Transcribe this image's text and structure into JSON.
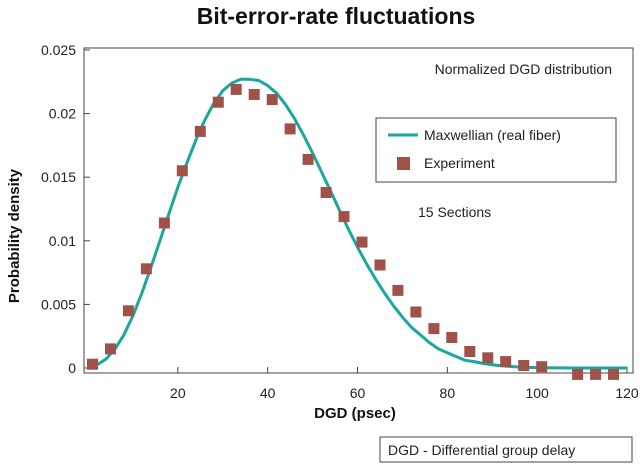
{
  "chart_data": {
    "type": "line",
    "title": "Bit-error-rate fluctuations",
    "xlabel": "DGD (psec)",
    "ylabel": "Probability density",
    "xlim": [
      0,
      120
    ],
    "ylim": [
      0,
      0.025
    ],
    "x_ticks": [
      "20",
      "40",
      "60",
      "80",
      "100",
      "120"
    ],
    "y_ticks": [
      "0",
      "0.005",
      "0.01",
      "0.015",
      "0.02",
      "0.025"
    ],
    "grid": false,
    "legend_position": "right",
    "annotations": {
      "top_right": "Normalized DGD distribution",
      "middle_right": "15 Sections",
      "footer": "DGD - Differential group delay"
    },
    "series": [
      {
        "name": "Maxwellian (real fiber)",
        "kind": "line",
        "color": "#1aa89c",
        "x": [
          0,
          2,
          4,
          6,
          8,
          10,
          12,
          14,
          16,
          18,
          20,
          22,
          24,
          26,
          28,
          30,
          32,
          34,
          36,
          38,
          40,
          42,
          44,
          46,
          48,
          50,
          52,
          54,
          56,
          58,
          60,
          62,
          64,
          66,
          68,
          70,
          72,
          74,
          76,
          78,
          80,
          82,
          84,
          86,
          88,
          90,
          92,
          94,
          96,
          98,
          100,
          102,
          104,
          106,
          108,
          110,
          112,
          114,
          116,
          118,
          120
        ],
        "y": [
          0,
          0.00025,
          0.0007,
          0.0015,
          0.0026,
          0.0041,
          0.0059,
          0.0079,
          0.01,
          0.0121,
          0.0142,
          0.0161,
          0.0179,
          0.0195,
          0.0208,
          0.0218,
          0.0224,
          0.0227,
          0.0227,
          0.0226,
          0.0222,
          0.0216,
          0.0207,
          0.0196,
          0.0183,
          0.0169,
          0.0154,
          0.0139,
          0.0124,
          0.0109,
          0.0095,
          0.0082,
          0.007,
          0.0059,
          0.0049,
          0.004,
          0.0032,
          0.0026,
          0.002,
          0.0015,
          0.0012,
          0.0009,
          0.0006,
          0.0005,
          0.00035,
          0.00025,
          0.00018,
          0.00012,
          8e-05,
          5e-05,
          3e-05,
          2e-05,
          1e-05,
          1e-05,
          0,
          0,
          0,
          0,
          0,
          0,
          0
        ]
      },
      {
        "name": "Experiment",
        "kind": "marker",
        "color": "#a0524a",
        "x": [
          1,
          5,
          9,
          13,
          17,
          21,
          25,
          29,
          33,
          37,
          41,
          45,
          49,
          53,
          57,
          61,
          65,
          69,
          73,
          77,
          81,
          85,
          89,
          93,
          97,
          101,
          109,
          113,
          117
        ],
        "y": [
          0.0003,
          0.0015,
          0.0045,
          0.0078,
          0.0114,
          0.0155,
          0.0186,
          0.0209,
          0.0219,
          0.0215,
          0.0211,
          0.0188,
          0.0164,
          0.0138,
          0.0119,
          0.0099,
          0.0081,
          0.0061,
          0.0044,
          0.0031,
          0.0024,
          0.0013,
          0.0008,
          0.0005,
          0.0002,
          0.0001,
          -0.0005,
          -0.0005,
          -0.0005
        ]
      }
    ]
  },
  "colors": {
    "frame": "#444444",
    "curve": "#1aa89c",
    "marker": "#a0524a"
  }
}
